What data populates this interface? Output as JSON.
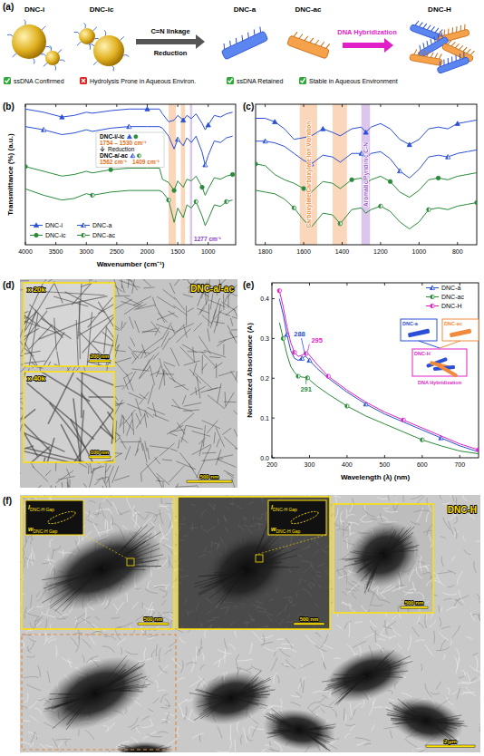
{
  "panel_labels": [
    "(a)",
    "(b)",
    "(c)",
    "(d)",
    "(e)",
    "(f)"
  ],
  "schematic": {
    "stages": [
      {
        "label": "DNC-i"
      },
      {
        "label": "DNC-ic"
      },
      {
        "label": "DNC-a"
      },
      {
        "label": "DNC-ac"
      },
      {
        "label": "DNC-H"
      }
    ],
    "arrows": [
      {
        "label": "C=N linkage",
        "sublabel": "Reduction"
      },
      {
        "label": "DNA Hybridization"
      }
    ],
    "checks": [
      {
        "text": "ssDNA Confirmed",
        "ok": true
      },
      {
        "text": "Hydrolysis Prone in Aqueous Environ.",
        "ok": false
      },
      {
        "text": "ssDNA Retained",
        "ok": true
      },
      {
        "text": "Stable in Aqueous Environment",
        "ok": true
      }
    ]
  },
  "chart_data": [
    {
      "type": "line",
      "x_label": "Wavenumber (cm⁻¹)",
      "y_label": "Transmittance (%) (a.u.)",
      "x": [
        4000,
        3700,
        3400,
        3200,
        3000,
        2900,
        2600,
        2300,
        2000,
        1800,
        1750,
        1650,
        1560,
        1500,
        1410,
        1350,
        1277,
        1200,
        1100,
        1050,
        1000,
        900,
        800,
        700,
        600
      ],
      "series": [
        {
          "name": "DNC-i",
          "color": "#2b4fd6",
          "marker": "triangle",
          "values": [
            3.85,
            3.75,
            3.6,
            3.65,
            3.75,
            3.72,
            3.8,
            3.85,
            3.85,
            3.85,
            3.7,
            3.45,
            3.5,
            3.65,
            3.5,
            3.65,
            3.55,
            3.7,
            3.4,
            3.2,
            3.35,
            3.65,
            3.6,
            3.7,
            3.75
          ]
        },
        {
          "name": "DNC-a",
          "color": "#2b4fd6",
          "marker": "triangle-half",
          "values": [
            3.3,
            3.2,
            3.05,
            3.1,
            3.2,
            3.15,
            3.25,
            3.3,
            3.3,
            3.3,
            3.25,
            3.0,
            2.6,
            2.9,
            2.7,
            2.95,
            2.8,
            3.0,
            2.5,
            2.1,
            2.4,
            2.85,
            2.8,
            2.95,
            3.0
          ]
        },
        {
          "name": "DNC-ic",
          "color": "#2a8a3a",
          "marker": "circle",
          "values": [
            2.05,
            1.9,
            1.75,
            1.8,
            1.9,
            1.85,
            1.95,
            2.0,
            2.0,
            2.0,
            1.65,
            1.55,
            1.3,
            1.6,
            1.4,
            1.65,
            1.6,
            1.75,
            1.4,
            1.15,
            1.35,
            1.7,
            1.65,
            1.75,
            1.8
          ]
        },
        {
          "name": "DNC-ac",
          "color": "#2a8a3a",
          "marker": "circle-half",
          "values": [
            1.35,
            1.15,
            1.0,
            1.05,
            1.2,
            1.15,
            1.25,
            1.3,
            1.3,
            1.3,
            1.25,
            1.0,
            0.3,
            0.75,
            0.45,
            0.85,
            0.75,
            0.95,
            0.5,
            0.2,
            0.4,
            0.85,
            0.8,
            0.95,
            1.0
          ]
        }
      ],
      "xlim": [
        4000,
        550
      ],
      "xticks": [
        4000,
        3500,
        3000,
        2500,
        2000,
        1500,
        1000
      ],
      "ylim": [
        -0.4,
        4
      ],
      "tick_labels": "x",
      "legend": "lower left",
      "bands": [
        {
          "from": 1650,
          "to": 1530,
          "color": "#f08a3c"
        },
        {
          "from": 1450,
          "to": 1380,
          "color": "#f08a3c"
        },
        {
          "from": 1300,
          "to": 1262,
          "color": "#9a5cc6"
        }
      ],
      "annotations": [
        {
          "text": "DNC-i/-ic"
        },
        {
          "text": "1754 – 1530 cm⁻¹"
        },
        {
          "text": "Reduction"
        },
        {
          "text": "DNC-a/-ac"
        },
        {
          "text": "1562 cm⁻¹"
        },
        {
          "text": "1409 cm⁻¹"
        },
        {
          "text": "1277 cm⁻¹"
        }
      ]
    },
    {
      "type": "line",
      "x": [
        1850,
        1800,
        1750,
        1700,
        1650,
        1600,
        1560,
        1500,
        1450,
        1410,
        1350,
        1300,
        1277,
        1250,
        1200,
        1150,
        1100,
        1050,
        1000,
        950,
        900,
        850,
        800,
        750,
        700
      ],
      "series": [
        {
          "color": "#2b4fd6",
          "marker": "triangle",
          "values": [
            3.6,
            3.6,
            3.5,
            3.3,
            3.0,
            3.05,
            3.1,
            3.3,
            3.2,
            3.1,
            3.3,
            3.35,
            3.2,
            3.35,
            3.45,
            3.3,
            3.0,
            2.85,
            3.0,
            3.3,
            3.35,
            3.3,
            3.45,
            3.5,
            3.55
          ]
        },
        {
          "color": "#2b4fd6",
          "marker": "triangle-half",
          "values": [
            2.95,
            2.95,
            2.9,
            2.8,
            2.6,
            2.4,
            2.3,
            2.55,
            2.5,
            2.35,
            2.6,
            2.6,
            2.45,
            2.6,
            2.65,
            2.45,
            2.1,
            1.9,
            2.15,
            2.5,
            2.55,
            2.5,
            2.6,
            2.65,
            2.7
          ]
        },
        {
          "color": "#2a8a3a",
          "marker": "circle",
          "values": [
            2.3,
            2.25,
            2.0,
            1.85,
            1.75,
            1.6,
            1.5,
            1.8,
            1.75,
            1.6,
            1.85,
            1.9,
            1.75,
            1.85,
            1.95,
            1.8,
            1.5,
            1.35,
            1.55,
            1.85,
            1.9,
            1.85,
            1.95,
            2.0,
            2.05
          ]
        },
        {
          "color": "#2a8a3a",
          "marker": "circle-half",
          "values": [
            1.55,
            1.5,
            1.45,
            1.3,
            1.05,
            0.7,
            0.5,
            0.9,
            0.85,
            0.6,
            1.0,
            1.05,
            0.9,
            1.0,
            1.1,
            0.95,
            0.65,
            0.45,
            0.65,
            1.0,
            1.05,
            1.0,
            1.1,
            1.15,
            1.2
          ]
        }
      ],
      "xlim": [
        1850,
        700
      ],
      "xticks": [
        1800,
        1600,
        1400,
        1200,
        1000,
        800
      ],
      "ylim": [
        0,
        4
      ],
      "tick_labels": "x",
      "bands": [
        {
          "from": 1620,
          "to": 1530,
          "color": "#f08a3c",
          "label": "Carboxylate/Carboxylate Ion Vibration"
        },
        {
          "from": 1450,
          "to": 1375,
          "color": "#f08a3c"
        },
        {
          "from": 1300,
          "to": 1255,
          "color": "#9a5cc6",
          "label": "Aromatic/Pyridinic C-N"
        }
      ]
    },
    {
      "type": "line",
      "x_label": "Wavelength (λ) (nm)",
      "y_label": "Normalized Absorbance (A)",
      "x": [
        220,
        230,
        240,
        250,
        260,
        270,
        280,
        288,
        291,
        295,
        300,
        320,
        350,
        400,
        450,
        500,
        550,
        600,
        650,
        700,
        750
      ],
      "series": [
        {
          "name": "DNC-a",
          "color": "#2b4fd6",
          "marker": "triangle-half",
          "peak": 288,
          "values": [
            0.4,
            0.36,
            0.31,
            0.27,
            0.25,
            0.245,
            0.25,
            0.255,
            0.254,
            0.25,
            0.245,
            0.225,
            0.2,
            0.165,
            0.135,
            0.11,
            0.09,
            0.07,
            0.05,
            0.03,
            0.015
          ]
        },
        {
          "name": "DNC-ac",
          "color": "#2a8a3a",
          "marker": "circle-half",
          "peak": 291,
          "values": [
            0.34,
            0.3,
            0.26,
            0.23,
            0.215,
            0.205,
            0.203,
            0.202,
            0.203,
            0.201,
            0.196,
            0.18,
            0.16,
            0.13,
            0.105,
            0.085,
            0.065,
            0.045,
            0.03,
            0.017,
            0.01
          ]
        },
        {
          "name": "DNC-H",
          "color": "#e01fc8",
          "marker": "circle-half",
          "peak": 295,
          "values": [
            0.42,
            0.38,
            0.33,
            0.29,
            0.265,
            0.255,
            0.258,
            0.262,
            0.262,
            0.263,
            0.258,
            0.235,
            0.205,
            0.17,
            0.14,
            0.115,
            0.095,
            0.075,
            0.055,
            0.035,
            0.02
          ]
        }
      ],
      "xlim": [
        200,
        750
      ],
      "xticks": [
        200,
        300,
        400,
        500,
        600,
        700
      ],
      "ylim": [
        0,
        0.44
      ],
      "yticks": [
        {
          "value": 0,
          "label": "0.0"
        },
        0.1,
        0.2,
        0.3,
        0.4
      ],
      "legend": "upper right",
      "inset": {
        "labels": [
          "DNC-a",
          "DNC-ac",
          "DNC-H"
        ],
        "arrow_label": "DNA Hybridization"
      }
    }
  ],
  "tem": [
    {
      "label": "DNC-a/-ac",
      "scale_bar": "500 nm",
      "insets": [
        {
          "label": "x 20k",
          "scale_bar": "200 nm"
        },
        {
          "label": "x 40k",
          "scale_bar": "100 nm"
        }
      ]
    },
    {
      "label": "DNC-H",
      "scale_bar": "2 µm",
      "insets": [
        {
          "scale_bar": "500 nm",
          "gap_labels": [
            {
              "symbol": "l",
              "subscript": "DNC-H Gap"
            },
            {
              "symbol": "w",
              "subscript": "DNC-H Gap"
            }
          ]
        },
        {
          "scale_bar": "500 nm",
          "gap_labels": [
            {
              "symbol": "l",
              "subscript": "DNC-H Gap"
            },
            {
              "symbol": "w",
              "subscript": "DNC-H Gap"
            }
          ]
        },
        {
          "scale_bar": "500 nm"
        }
      ]
    }
  ]
}
